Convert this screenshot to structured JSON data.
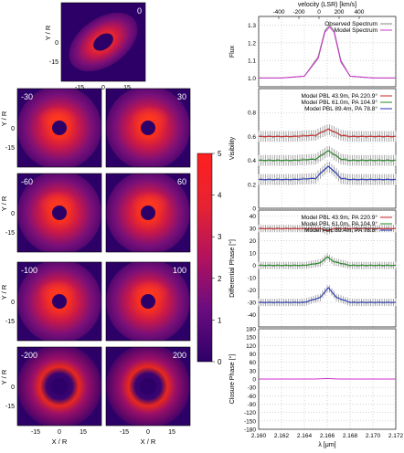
{
  "maps": {
    "xlabel": "X / R",
    "ylabel": "Y / R",
    "ticks_x": [
      "-15",
      "0",
      "15"
    ],
    "ticks_y": [
      "0",
      "-15"
    ],
    "panels": [
      {
        "label": "0"
      },
      {
        "label": "-30"
      },
      {
        "label": "30"
      },
      {
        "label": "-60"
      },
      {
        "label": "60"
      },
      {
        "label": "-100"
      },
      {
        "label": "100"
      },
      {
        "label": "-200"
      },
      {
        "label": "200"
      }
    ]
  },
  "colorbar": {
    "ticks": [
      "5",
      "4",
      "3",
      "2",
      "1",
      "0"
    ],
    "colors": [
      "#2d0068",
      "#5a0a84",
      "#a0106e",
      "#dc1e3c",
      "#f83a1e",
      "#ff2020"
    ]
  },
  "chart_data": [
    {
      "type": "line",
      "ylabel": "Flux",
      "top_axis_label": "velocity (LSR) [km/s]",
      "top_ticks": [
        "-400",
        "-200",
        "0",
        "200",
        "400"
      ],
      "xlim": [
        2.16,
        2.172
      ],
      "ylim": [
        0.95,
        1.35
      ],
      "yticks": [
        "1.3",
        "1.2",
        "1.1",
        "1.0"
      ],
      "legend": [
        "Observed Spectrum",
        "Model Spectrum"
      ],
      "series": [
        {
          "name": "Observed Spectrum",
          "color": "#888888",
          "x": [
            2.16,
            2.162,
            2.164,
            2.1652,
            2.1658,
            2.1662,
            2.1666,
            2.1672,
            2.168,
            2.17,
            2.172
          ],
          "y": [
            1.0,
            1.0,
            1.01,
            1.12,
            1.27,
            1.3,
            1.27,
            1.1,
            1.01,
            1.0,
            1.0
          ]
        },
        {
          "name": "Model Spectrum",
          "color": "#cc33cc",
          "x": [
            2.16,
            2.162,
            2.164,
            2.1652,
            2.1658,
            2.1662,
            2.1666,
            2.1672,
            2.168,
            2.17,
            2.172
          ],
          "y": [
            1.0,
            1.0,
            1.01,
            1.11,
            1.26,
            1.29,
            1.26,
            1.09,
            1.01,
            1.0,
            1.0
          ]
        }
      ]
    },
    {
      "type": "line",
      "ylabel": "Visibility",
      "xlim": [
        2.16,
        2.172
      ],
      "ylim": [
        0.0,
        1.0
      ],
      "yticks": [
        "0.8",
        "0.6",
        "0.4",
        "0.2",
        "0"
      ],
      "legend": [
        "Model PBL 43.9m, PA 220.9°",
        "Model PBL 61.0m, PA 104.9°",
        "Model PBL 89.4m, PA 78.8°"
      ],
      "series": [
        {
          "name": "Model PBL 43.9m, PA 220.9°",
          "color": "#cc2222",
          "x": [
            2.16,
            2.163,
            2.165,
            2.1656,
            2.1661,
            2.1666,
            2.1672,
            2.168,
            2.172
          ],
          "y": [
            0.6,
            0.6,
            0.61,
            0.64,
            0.66,
            0.64,
            0.61,
            0.6,
            0.6
          ]
        },
        {
          "name": "Model PBL 61.0m, PA 104.9°",
          "color": "#228822",
          "x": [
            2.16,
            2.163,
            2.165,
            2.1656,
            2.1661,
            2.1666,
            2.1672,
            2.168,
            2.172
          ],
          "y": [
            0.4,
            0.4,
            0.41,
            0.45,
            0.48,
            0.45,
            0.41,
            0.4,
            0.4
          ]
        },
        {
          "name": "Model PBL 89.4m, PA 78.8°",
          "color": "#2233bb",
          "x": [
            2.16,
            2.163,
            2.165,
            2.1656,
            2.1661,
            2.1666,
            2.1672,
            2.168,
            2.172
          ],
          "y": [
            0.24,
            0.24,
            0.25,
            0.31,
            0.35,
            0.31,
            0.25,
            0.24,
            0.24
          ]
        }
      ]
    },
    {
      "type": "line",
      "ylabel": "Differential Phase [°]",
      "xlim": [
        2.16,
        2.172
      ],
      "ylim": [
        -50,
        45
      ],
      "yticks": [
        "40",
        "30",
        "20",
        "10",
        "0",
        "-10",
        "-20",
        "-30",
        "-40"
      ],
      "legend": [
        "Model PBL 43.9m, PA 220.9°",
        "Model PBL 61.0m, PA 104.9°",
        "Model PBL 89.4m, PA 78.8°"
      ],
      "series": [
        {
          "name": "Model PBL 43.9m, PA 220.9°",
          "color": "#cc2222",
          "x": [
            2.16,
            2.164,
            2.1654,
            2.166,
            2.1666,
            2.168,
            2.172
          ],
          "y": [
            30,
            30,
            30,
            28,
            30,
            30,
            30
          ]
        },
        {
          "name": "Model PBL 61.0m, PA 104.9°",
          "color": "#228822",
          "x": [
            2.16,
            2.164,
            2.1654,
            2.166,
            2.1666,
            2.168,
            2.172
          ],
          "y": [
            0,
            0,
            2,
            7,
            3,
            0,
            0
          ]
        },
        {
          "name": "Model PBL 89.4m, PA 78.8°",
          "color": "#2233bb",
          "x": [
            2.16,
            2.164,
            2.1654,
            2.1661,
            2.1668,
            2.168,
            2.172
          ],
          "y": [
            -30,
            -30,
            -26,
            -18,
            -26,
            -30,
            -30
          ]
        }
      ]
    },
    {
      "type": "line",
      "ylabel": "Closure Phase [°]",
      "xlabel": "λ [μm]",
      "xlim": [
        2.16,
        2.172
      ],
      "ylim": [
        -180,
        180
      ],
      "xticks": [
        "2.160",
        "2.162",
        "2.164",
        "2.166",
        "2.168",
        "2.170",
        "2.172"
      ],
      "yticks": [
        "180",
        "150",
        "120",
        "90",
        "60",
        "30",
        "0",
        "-30",
        "-60",
        "-90",
        "-120",
        "-150",
        "-180"
      ],
      "series": [
        {
          "name": "",
          "color": "#cc33cc",
          "x": [
            2.16,
            2.165,
            2.166,
            2.167,
            2.172
          ],
          "y": [
            0,
            0,
            2,
            0,
            0
          ]
        }
      ]
    }
  ]
}
